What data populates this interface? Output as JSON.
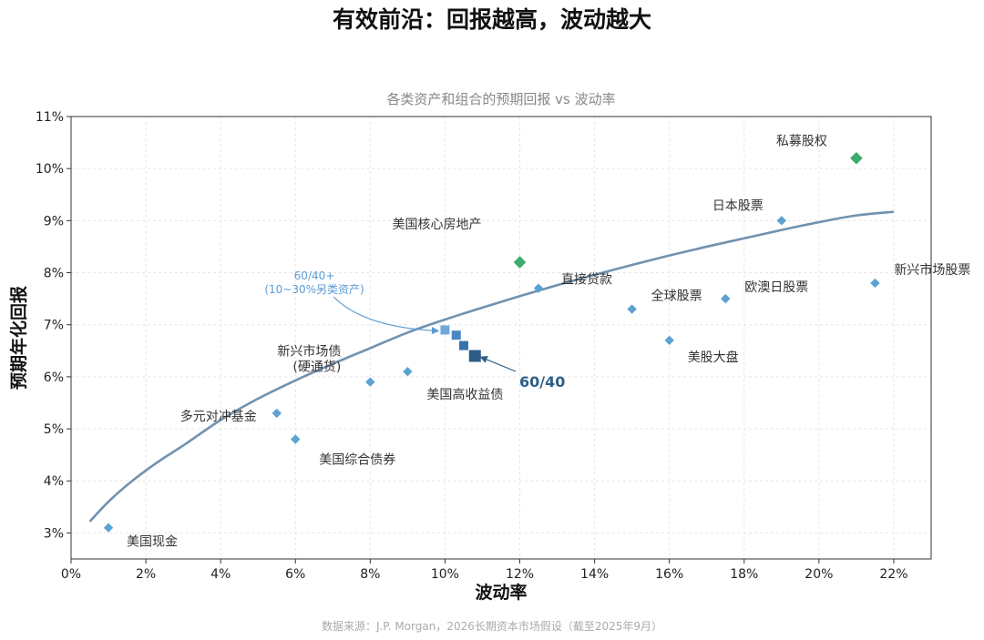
{
  "page_title": "有效前沿：回报越高，波动越大",
  "source_note": "数据来源：J.P. Morgan，2026长期资本市场假设（截至2025年9月）",
  "colors": {
    "asset": "#5BA3D0",
    "private": "#3DAA6E",
    "frontier": "#7092B0",
    "mix": [
      "#6FA6DC",
      "#4A88C4",
      "#3572AC",
      "#2B5D86"
    ],
    "callout_blue": "#5B9BD5",
    "callout_dark": "#2F5F86"
  },
  "chart_data": {
    "type": "scatter",
    "title": "各类资产和组合的预期回报 vs 波动率",
    "xlabel": "波动率",
    "ylabel": "预期年化回报",
    "xlim": [
      0,
      23
    ],
    "ylim": [
      2.5,
      11
    ],
    "x_ticks": [
      0,
      2,
      4,
      6,
      8,
      10,
      12,
      14,
      16,
      18,
      20,
      22
    ],
    "x_tick_labels": [
      "0%",
      "2%",
      "4%",
      "6%",
      "8%",
      "10%",
      "12%",
      "14%",
      "16%",
      "18%",
      "20%",
      "22%"
    ],
    "y_ticks": [
      3,
      4,
      5,
      6,
      7,
      8,
      9,
      10,
      11
    ],
    "y_tick_labels": [
      "3%",
      "4%",
      "5%",
      "6%",
      "7%",
      "8%",
      "9%",
      "10%",
      "11%"
    ],
    "grid": true,
    "assets": [
      {
        "name": "美国现金",
        "x": 1.0,
        "y": 3.1,
        "category": "asset"
      },
      {
        "name": "多元对冲基金",
        "x": 5.5,
        "y": 5.3,
        "category": "asset"
      },
      {
        "name": "美国综合债券",
        "x": 6.0,
        "y": 4.8,
        "category": "asset"
      },
      {
        "name": "新兴市场债\n(硬通货)",
        "x": 8.0,
        "y": 5.9,
        "category": "asset"
      },
      {
        "name": "美国高收益债",
        "x": 9.0,
        "y": 6.1,
        "category": "asset"
      },
      {
        "name": "美国核心房地产",
        "x": 12.0,
        "y": 8.2,
        "category": "private"
      },
      {
        "name": "直接贷款",
        "x": 12.5,
        "y": 7.7,
        "category": "asset"
      },
      {
        "name": "全球股票",
        "x": 15.0,
        "y": 7.3,
        "category": "asset"
      },
      {
        "name": "美股大盘",
        "x": 16.0,
        "y": 6.7,
        "category": "asset"
      },
      {
        "name": "欧澳日股票",
        "x": 17.5,
        "y": 7.5,
        "category": "asset"
      },
      {
        "name": "日本股票",
        "x": 19.0,
        "y": 9.0,
        "category": "asset"
      },
      {
        "name": "私募股权",
        "x": 21.0,
        "y": 10.2,
        "category": "private"
      },
      {
        "name": "新兴市场股票",
        "x": 21.5,
        "y": 7.8,
        "category": "asset"
      }
    ],
    "portfolios": [
      {
        "x": 10.0,
        "y": 6.9
      },
      {
        "x": 10.3,
        "y": 6.8
      },
      {
        "x": 10.5,
        "y": 6.6
      },
      {
        "x": 10.8,
        "y": 6.4
      }
    ],
    "frontier_curve": [
      [
        0.5,
        3.22
      ],
      [
        1.0,
        3.6
      ],
      [
        1.5,
        3.92
      ],
      [
        2,
        4.2
      ],
      [
        2.5,
        4.45
      ],
      [
        3,
        4.68
      ],
      [
        4,
        5.17
      ],
      [
        5,
        5.58
      ],
      [
        6,
        5.93
      ],
      [
        7,
        6.25
      ],
      [
        8,
        6.55
      ],
      [
        9,
        6.85
      ],
      [
        10,
        7.1
      ],
      [
        11,
        7.33
      ],
      [
        12,
        7.55
      ],
      [
        13,
        7.76
      ],
      [
        14,
        7.96
      ],
      [
        15,
        8.15
      ],
      [
        16,
        8.33
      ],
      [
        17,
        8.5
      ],
      [
        18,
        8.66
      ],
      [
        19,
        8.82
      ],
      [
        20,
        8.97
      ],
      [
        21,
        9.1
      ],
      [
        22,
        9.17
      ]
    ],
    "annotations": [
      {
        "text": "60/40+\n(10~30%另类资产)",
        "points_to": {
          "x": 10.0,
          "y": 6.9
        }
      },
      {
        "text": "60/40",
        "points_to": {
          "x": 10.8,
          "y": 6.4
        }
      }
    ]
  }
}
